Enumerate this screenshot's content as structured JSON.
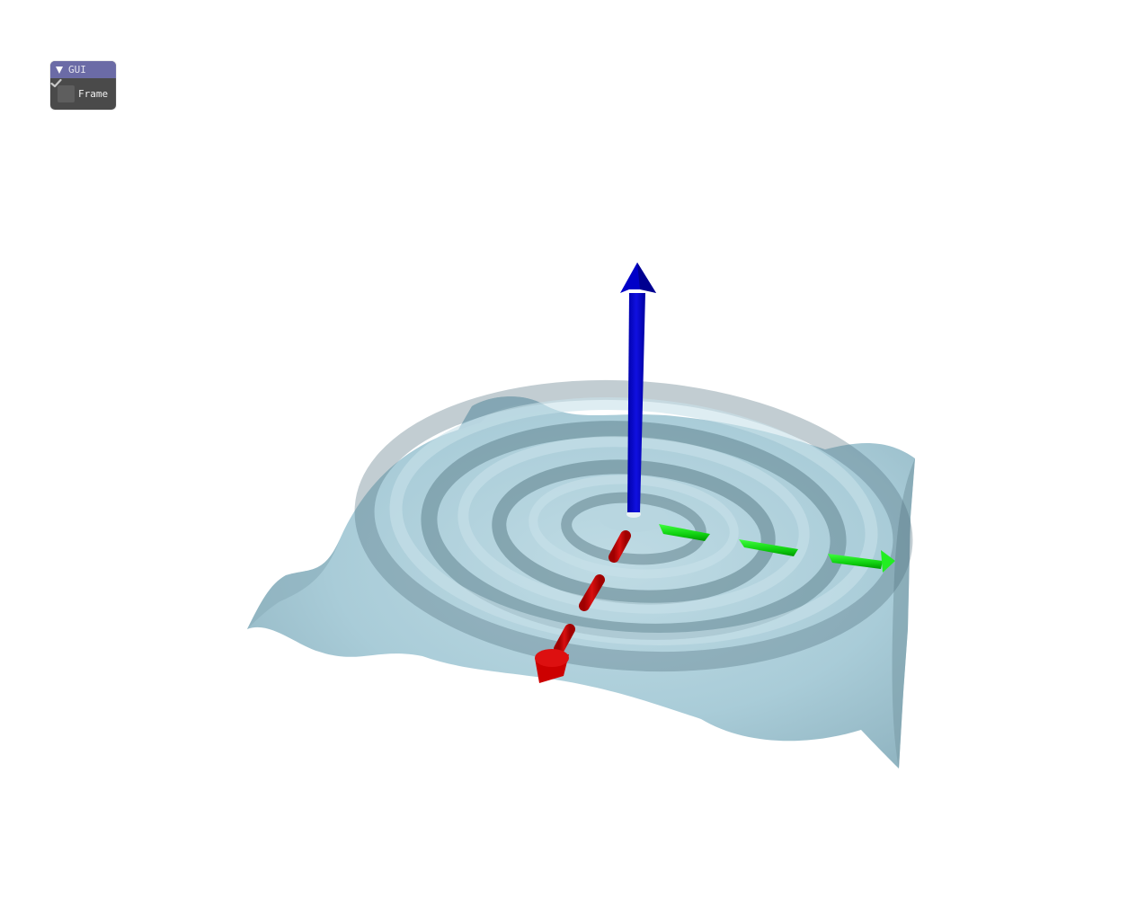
{
  "gui": {
    "title": "GUI",
    "collapse_icon": "triangle-down-icon",
    "frame_checkbox": {
      "label": "Frame",
      "checked": true,
      "icon": "checkmark-icon"
    }
  },
  "scene": {
    "background_color": "#ffffff",
    "surface_color": "#a9ccd8",
    "axis_colors": {
      "x": "#cc0000",
      "y": "#00dd00",
      "z": "#0000cc"
    }
  }
}
